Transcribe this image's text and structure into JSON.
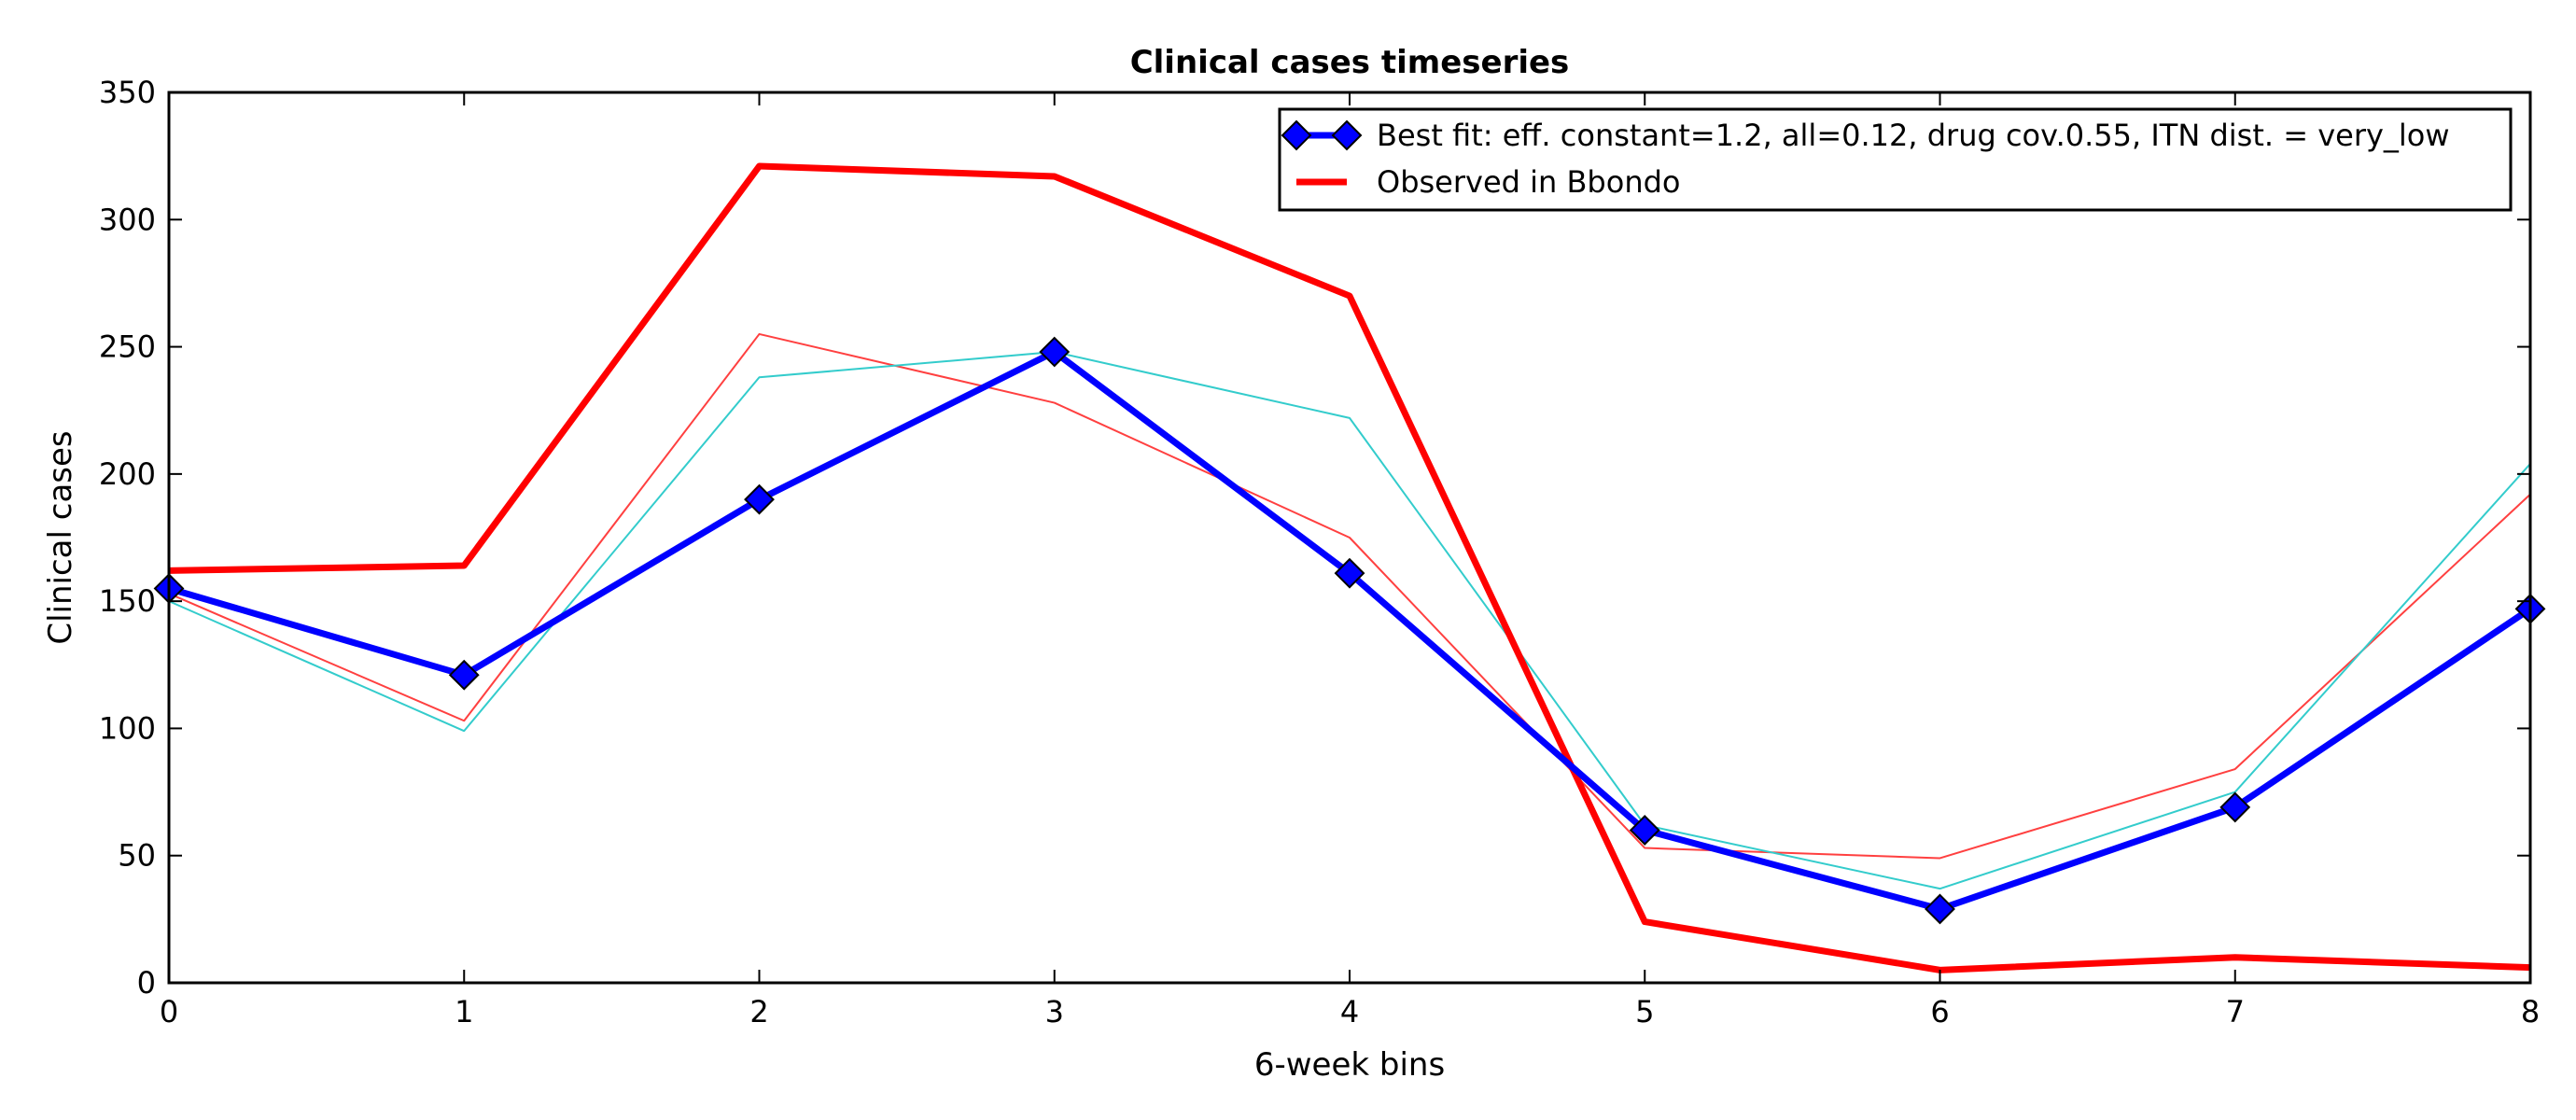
{
  "chart_data": {
    "type": "line",
    "title": "Clinical cases timeseries",
    "xlabel": "6-week bins",
    "ylabel": "Clinical cases",
    "x": [
      0,
      1,
      2,
      3,
      4,
      5,
      6,
      7,
      8
    ],
    "xlim": [
      0,
      8
    ],
    "ylim": [
      0,
      350
    ],
    "xticks": [
      "0",
      "1",
      "2",
      "3",
      "4",
      "5",
      "6",
      "7",
      "8"
    ],
    "yticks": [
      "0",
      "50",
      "100",
      "150",
      "200",
      "250",
      "300",
      "350"
    ],
    "grid": false,
    "legend_position": "top-right",
    "series": [
      {
        "name": "Best fit: eff. constant=1.2, all=0.12, drug cov.0.55, ITN dist. = very_low",
        "values": [
          155,
          121,
          190,
          248,
          161,
          60,
          29,
          69,
          147
        ],
        "color": "#0000ff",
        "marker": "diamond",
        "width": "thick",
        "in_legend": true
      },
      {
        "name": "Observed in Bbondo",
        "values": [
          162,
          164,
          321,
          317,
          270,
          24,
          5,
          10,
          6
        ],
        "color": "#ff0000",
        "marker": "none",
        "width": "thick",
        "in_legend": true
      },
      {
        "values": [
          153,
          103,
          255,
          228,
          175,
          53,
          49,
          84,
          192
        ],
        "color": "#ff4040",
        "marker": "none",
        "width": "thin",
        "in_legend": false
      },
      {
        "values": [
          150,
          99,
          238,
          248,
          222,
          62,
          37,
          75,
          204
        ],
        "color": "#33cccc",
        "marker": "none",
        "width": "thin",
        "in_legend": false
      }
    ]
  }
}
